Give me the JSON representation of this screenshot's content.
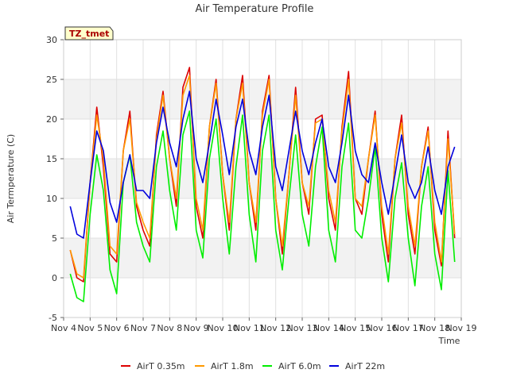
{
  "chart_data": {
    "type": "line",
    "title": "Air Temperature Profile",
    "xlabel": "Time",
    "ylabel": "Air Termperature (C)",
    "badge": "TZ_tmet",
    "x_ticks": [
      "Nov 4",
      "Nov 5",
      "Nov 6",
      "Nov 7",
      "Nov 8",
      "Nov 9",
      "Nov 10",
      "Nov 11",
      "Nov 12",
      "Nov 13",
      "Nov 14",
      "Nov 15",
      "Nov 16",
      "Nov 17",
      "Nov 18",
      "Nov 19"
    ],
    "xlim": [
      "Nov 4",
      "Nov 19"
    ],
    "ylim": [
      -5,
      30
    ],
    "y_ticks": [
      -5,
      0,
      5,
      10,
      15,
      20,
      25,
      30
    ],
    "grid": true,
    "legend_position": "bottom",
    "x": [
      "Nov 4 06:00",
      "Nov 4 12:00",
      "Nov 4 18:00",
      "Nov 5 00:00",
      "Nov 5 06:00",
      "Nov 5 12:00",
      "Nov 5 18:00",
      "Nov 6 00:00",
      "Nov 6 06:00",
      "Nov 6 12:00",
      "Nov 6 18:00",
      "Nov 7 00:00",
      "Nov 7 06:00",
      "Nov 7 12:00",
      "Nov 7 18:00",
      "Nov 8 00:00",
      "Nov 8 06:00",
      "Nov 8 12:00",
      "Nov 8 18:00",
      "Nov 9 00:00",
      "Nov 9 06:00",
      "Nov 9 12:00",
      "Nov 9 18:00",
      "Nov 10 00:00",
      "Nov 10 06:00",
      "Nov 10 12:00",
      "Nov 10 18:00",
      "Nov 11 00:00",
      "Nov 11 06:00",
      "Nov 11 12:00",
      "Nov 11 18:00",
      "Nov 12 00:00",
      "Nov 12 06:00",
      "Nov 12 12:00",
      "Nov 12 18:00",
      "Nov 13 00:00",
      "Nov 13 06:00",
      "Nov 13 12:00",
      "Nov 13 18:00",
      "Nov 14 00:00",
      "Nov 14 06:00",
      "Nov 14 12:00",
      "Nov 14 18:00",
      "Nov 15 00:00",
      "Nov 15 06:00",
      "Nov 15 12:00",
      "Nov 15 18:00",
      "Nov 16 00:00",
      "Nov 16 06:00",
      "Nov 16 12:00",
      "Nov 16 18:00",
      "Nov 17 00:00",
      "Nov 17 06:00",
      "Nov 17 12:00",
      "Nov 17 18:00",
      "Nov 18 00:00",
      "Nov 18 06:00",
      "Nov 18 12:00",
      "Nov 18 18:00"
    ],
    "series": [
      {
        "name": "AirT 0.35m",
        "color": "#dd0000",
        "values": [
          3.5,
          0,
          -0.5,
          12,
          21.5,
          14,
          3,
          2,
          16,
          21,
          9,
          6,
          4,
          18,
          23.5,
          15,
          9,
          24,
          26.5,
          9,
          5,
          19,
          25,
          13,
          6,
          20,
          25.5,
          12,
          6,
          21,
          25.5,
          10,
          3,
          13,
          24,
          12,
          8,
          20,
          20.5,
          10,
          6,
          19,
          26,
          10,
          8,
          15,
          21,
          8,
          2,
          15,
          20.5,
          8,
          3,
          14,
          19,
          6,
          1.5,
          18.5,
          5
        ]
      },
      {
        "name": "AirT 1.8m",
        "color": "#ff9900",
        "values": [
          3.5,
          0.5,
          0,
          12,
          20.5,
          15,
          4,
          3,
          16,
          20,
          9.5,
          7,
          5,
          17.5,
          23,
          15,
          10,
          23,
          25.5,
          10,
          6,
          19,
          24.5,
          13,
          7,
          20,
          24.5,
          12,
          7,
          20.5,
          25,
          10,
          4,
          13,
          23,
          12,
          9,
          19.5,
          20,
          11,
          7,
          18.5,
          25,
          10,
          9,
          15,
          20.5,
          9,
          3,
          15,
          19.5,
          9,
          4,
          14,
          18.5,
          7,
          2,
          17.5,
          5.5
        ]
      },
      {
        "name": "AirT 6.0m",
        "color": "#00ee00",
        "values": [
          0.5,
          -2.5,
          -3,
          8,
          15.5,
          11,
          1,
          -2,
          12,
          15.5,
          7,
          4,
          2,
          14,
          18.5,
          11,
          6,
          18,
          21,
          6,
          2.5,
          15,
          20,
          10,
          3,
          14,
          20.5,
          8,
          2,
          16,
          20.5,
          6,
          1,
          10,
          18,
          8,
          4,
          14,
          19,
          6,
          2,
          14,
          19.5,
          6,
          5,
          10,
          16.5,
          5,
          -0.5,
          10,
          14.5,
          5,
          -1,
          9,
          14,
          3,
          -1.5,
          13.5,
          2
        ]
      },
      {
        "name": "AirT 22m",
        "color": "#0000dd",
        "values": [
          9,
          5.5,
          5,
          12,
          18.5,
          16,
          9.5,
          7,
          12,
          15.5,
          11,
          11,
          10,
          17,
          21.5,
          17,
          14,
          20,
          23.5,
          15,
          12,
          17,
          22.5,
          18,
          13,
          19,
          22.5,
          16,
          13,
          19,
          23,
          14,
          11,
          16,
          21,
          16,
          13,
          17,
          20,
          14,
          12,
          17,
          23,
          16,
          13,
          12,
          17,
          12,
          8,
          13,
          18,
          12,
          10,
          12,
          16.5,
          11,
          8,
          14,
          16.5
        ]
      }
    ]
  }
}
